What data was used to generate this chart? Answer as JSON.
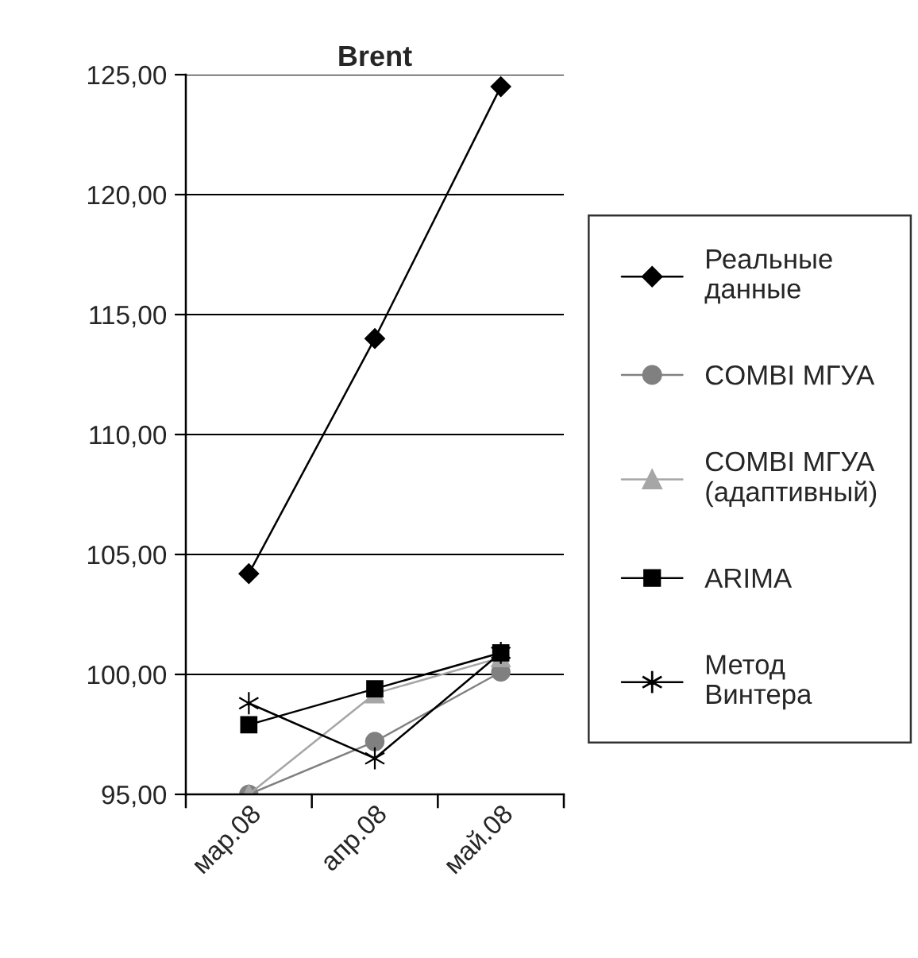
{
  "chart_data": {
    "type": "line",
    "title": "Brent",
    "categories": [
      "мар.08",
      "апр.08",
      "май.08"
    ],
    "series": [
      {
        "name": "Реальные\nданные",
        "color": "#000000",
        "marker": "diamond",
        "values": [
          104.2,
          114.0,
          124.5
        ]
      },
      {
        "name": "COMBI МГУА",
        "color": "#808080",
        "marker": "circle",
        "values": [
          95.0,
          97.2,
          100.1
        ]
      },
      {
        "name": "COMBI МГУА\n(адаптивный)",
        "color": "#a6a6a6",
        "marker": "triangle",
        "values": [
          95.0,
          99.2,
          100.7
        ]
      },
      {
        "name": "ARIMA",
        "color": "#000000",
        "marker": "square",
        "values": [
          97.9,
          99.4,
          100.9
        ]
      },
      {
        "name": "Метод\nВинтера",
        "color": "#000000",
        "marker": "cross",
        "values": [
          98.8,
          96.5,
          100.9
        ]
      }
    ],
    "ylim": [
      95,
      125
    ],
    "yticks": [
      {
        "value": 95,
        "label": "95,00"
      },
      {
        "value": 100,
        "label": "100,00"
      },
      {
        "value": 105,
        "label": "105,00"
      },
      {
        "value": 110,
        "label": "110,00"
      },
      {
        "value": 115,
        "label": "115,00"
      },
      {
        "value": 120,
        "label": "120,00"
      },
      {
        "value": 125,
        "label": "125,00"
      }
    ],
    "grid": "y",
    "legend": "right"
  }
}
